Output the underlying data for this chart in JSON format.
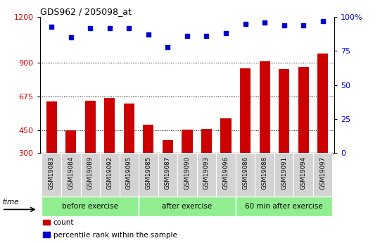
{
  "title": "GDS962 / 205098_at",
  "categories": [
    "GSM19083",
    "GSM19084",
    "GSM19089",
    "GSM19092",
    "GSM19095",
    "GSM19085",
    "GSM19087",
    "GSM19090",
    "GSM19093",
    "GSM19096",
    "GSM19086",
    "GSM19088",
    "GSM19091",
    "GSM19094",
    "GSM19097"
  ],
  "bar_values": [
    640,
    452,
    648,
    665,
    630,
    490,
    385,
    455,
    460,
    530,
    860,
    905,
    855,
    870,
    960
  ],
  "percentile_values": [
    93,
    85,
    92,
    92,
    92,
    87,
    78,
    86,
    86,
    88,
    95,
    96,
    94,
    94,
    97
  ],
  "bar_color": "#cc0000",
  "percentile_color": "#0000cc",
  "groups": [
    {
      "label": "before exercise",
      "start": 0,
      "end": 5
    },
    {
      "label": "after exercise",
      "start": 5,
      "end": 10
    },
    {
      "label": "60 min after exercise",
      "start": 10,
      "end": 15
    }
  ],
  "group_color": "#90ee90",
  "ylim_left": [
    300,
    1200
  ],
  "ylim_right": [
    0,
    100
  ],
  "yticks_left": [
    300,
    450,
    675,
    900,
    1200
  ],
  "yticks_right": [
    0,
    25,
    50,
    75,
    100
  ],
  "grid_values": [
    450,
    675,
    900
  ],
  "background_color": "#ffffff",
  "tick_area_color": "#d3d3d3",
  "time_label": "time",
  "legend_items": [
    {
      "label": "count",
      "color": "#cc0000"
    },
    {
      "label": "percentile rank within the sample",
      "color": "#0000cc"
    }
  ]
}
